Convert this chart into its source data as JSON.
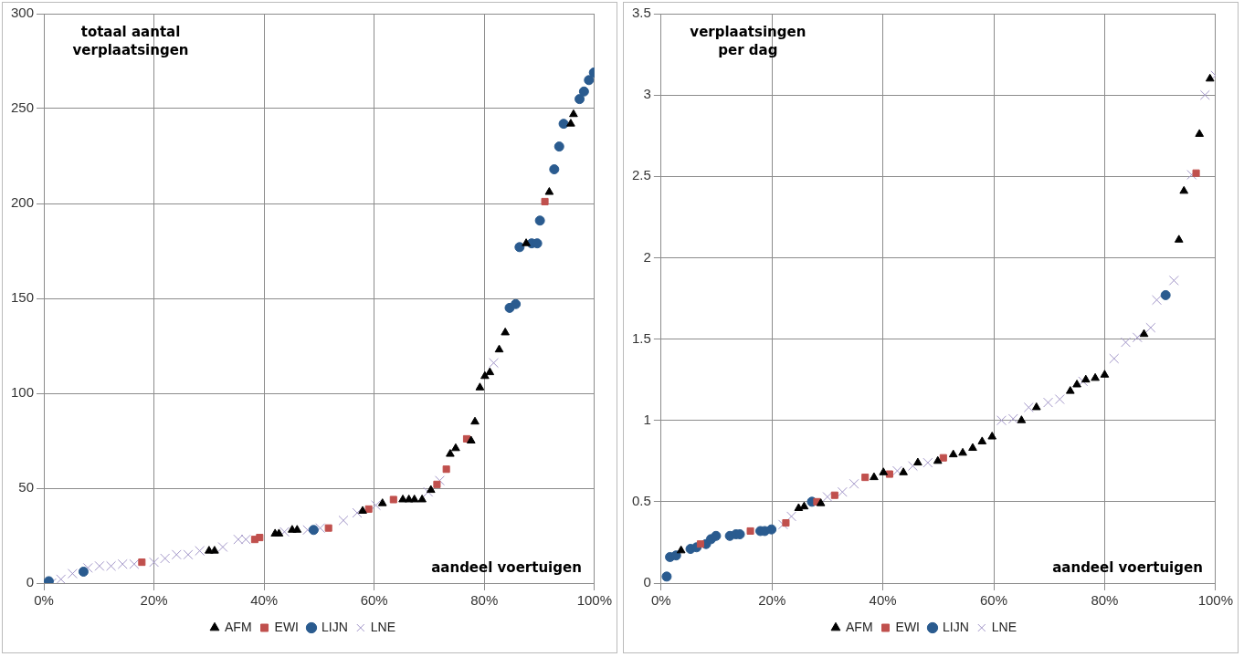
{
  "chart_data": [
    {
      "type": "scatter",
      "ylabel": "totaal aantal verplaatsingen",
      "xlabel": "aandeel voertuigen",
      "xlim": [
        0,
        100
      ],
      "xticks": [
        {
          "value": 0,
          "label": "0%"
        },
        {
          "value": 20,
          "label": "20%"
        },
        {
          "value": 40,
          "label": "40%"
        },
        {
          "value": 60,
          "label": "60%"
        },
        {
          "value": 80,
          "label": "80%"
        },
        {
          "value": 100,
          "label": "100%"
        }
      ],
      "ylim": [
        0,
        300
      ],
      "yticks": [
        0,
        50,
        100,
        150,
        200,
        250,
        300
      ],
      "grid": true,
      "legend": "bottom",
      "series": [
        {
          "name": "AFM",
          "color": "#000000",
          "marker": "triangle",
          "x": [
            30,
            31,
            42,
            42.7,
            45.1,
            46,
            57.9,
            61.5,
            65.2,
            66.3,
            67.3,
            68.7,
            70.3,
            73.8,
            74.8,
            77.6,
            78.3,
            79.2,
            80.1,
            81,
            82.7,
            83.8,
            87.6,
            91.8,
            95.7,
            96.2
          ],
          "values": [
            17,
            17,
            26,
            26,
            28,
            28,
            38,
            42,
            44,
            44,
            44,
            44,
            49,
            68,
            71,
            75,
            85,
            103,
            109,
            111,
            123,
            132,
            179,
            206,
            242,
            247
          ]
        },
        {
          "name": "EWI",
          "color": "#c0504d",
          "marker": "square",
          "x": [
            17.8,
            38.3,
            39.2,
            51.7,
            59,
            63.5,
            71.4,
            73.1,
            76.8,
            91
          ],
          "values": [
            11,
            23,
            24,
            29,
            39,
            44,
            52,
            60,
            76,
            201
          ]
        },
        {
          "name": "LIJN",
          "color": "#2a5b8f",
          "marker": "circle",
          "x": [
            0.9,
            7.2,
            49,
            84.6,
            85.7,
            86.4,
            88.6,
            89.6,
            90.1,
            92.7,
            93.6,
            94.4,
            97.3,
            98.1,
            99,
            99.9
          ],
          "values": [
            1,
            6,
            28,
            145,
            147,
            177,
            179,
            179,
            191,
            218,
            230,
            242,
            255,
            259,
            265,
            269
          ]
        },
        {
          "name": "LNE",
          "color": "#a397c9",
          "marker": "cross",
          "x": [
            1.4,
            3.1,
            5.2,
            8,
            10.1,
            12.2,
            14.3,
            16.4,
            20,
            22,
            24.1,
            26.2,
            28.3,
            32.5,
            35.3,
            36.7,
            43.7,
            47.9,
            50.2,
            54.4,
            56.9,
            60.3,
            69.8,
            71.9,
            81.7
          ],
          "values": [
            0,
            2,
            5,
            8,
            9,
            9,
            10,
            10,
            11,
            13,
            15,
            15,
            17,
            19,
            23,
            23,
            27,
            28,
            29,
            33,
            37,
            41,
            48,
            54,
            116
          ]
        }
      ]
    },
    {
      "type": "scatter",
      "ylabel": "verplaatsingen per dag",
      "xlabel": "aandeel voertuigen",
      "xlim": [
        0,
        100
      ],
      "xticks": [
        {
          "value": 0,
          "label": "0%"
        },
        {
          "value": 20,
          "label": "20%"
        },
        {
          "value": 40,
          "label": "40%"
        },
        {
          "value": 60,
          "label": "60%"
        },
        {
          "value": 80,
          "label": "80%"
        },
        {
          "value": 100,
          "label": "100%"
        }
      ],
      "ylim": [
        0,
        3.5
      ],
      "yticks": [
        0,
        0.5,
        1,
        1.5,
        2,
        2.5,
        3,
        3.5
      ],
      "grid": true,
      "legend": "bottom",
      "series": [
        {
          "name": "AFM",
          "color": "#000000",
          "marker": "triangle",
          "x": [
            3.6,
            24.8,
            25.8,
            28.8,
            38.4,
            40.1,
            43.7,
            46.3,
            49.9,
            52.7,
            54.4,
            56.2,
            57.9,
            59.7,
            65,
            67.7,
            73.8,
            75,
            76.6,
            78.3,
            80,
            87.1,
            93.4,
            94.3,
            97.1,
            99
          ],
          "values": [
            0.2,
            0.46,
            0.47,
            0.49,
            0.65,
            0.68,
            0.68,
            0.74,
            0.75,
            0.79,
            0.8,
            0.83,
            0.87,
            0.9,
            1.0,
            1.08,
            1.18,
            1.22,
            1.25,
            1.26,
            1.28,
            1.53,
            2.11,
            2.41,
            2.76,
            3.1
          ]
        },
        {
          "name": "EWI",
          "color": "#c0504d",
          "marker": "square",
          "x": [
            7.1,
            16.1,
            22.5,
            28.1,
            31.3,
            36.8,
            41.2,
            50.9,
            96.5
          ],
          "values": [
            0.24,
            0.32,
            0.37,
            0.5,
            0.54,
            0.65,
            0.67,
            0.77,
            2.52
          ]
        },
        {
          "name": "LIJN",
          "color": "#2a5b8f",
          "marker": "circle",
          "x": [
            1,
            1.6,
            2.7,
            5.3,
            6.4,
            8.1,
            9,
            9.9,
            12.4,
            13.5,
            14.2,
            17.9,
            18.7,
            19.9,
            27.2,
            91
          ],
          "values": [
            0.04,
            0.16,
            0.17,
            0.21,
            0.22,
            0.24,
            0.27,
            0.29,
            0.29,
            0.3,
            0.3,
            0.32,
            0.32,
            0.33,
            0.5,
            1.77
          ]
        },
        {
          "name": "LNE",
          "color": "#a397c9",
          "marker": "cross",
          "x": [
            22,
            23.5,
            30,
            32.7,
            34.8,
            42.6,
            45.4,
            48.1,
            61.4,
            63.5,
            66.3,
            69.8,
            71.9,
            76.1,
            81.7,
            83.8,
            85.9,
            88.3,
            89.4,
            92.5,
            95.7,
            98.1,
            100
          ],
          "values": [
            0.36,
            0.41,
            0.53,
            0.56,
            0.61,
            0.69,
            0.72,
            0.74,
            1.0,
            1.01,
            1.08,
            1.11,
            1.13,
            1.24,
            1.38,
            1.48,
            1.51,
            1.57,
            1.74,
            1.86,
            2.51,
            3.0,
            3.12
          ]
        }
      ]
    }
  ]
}
